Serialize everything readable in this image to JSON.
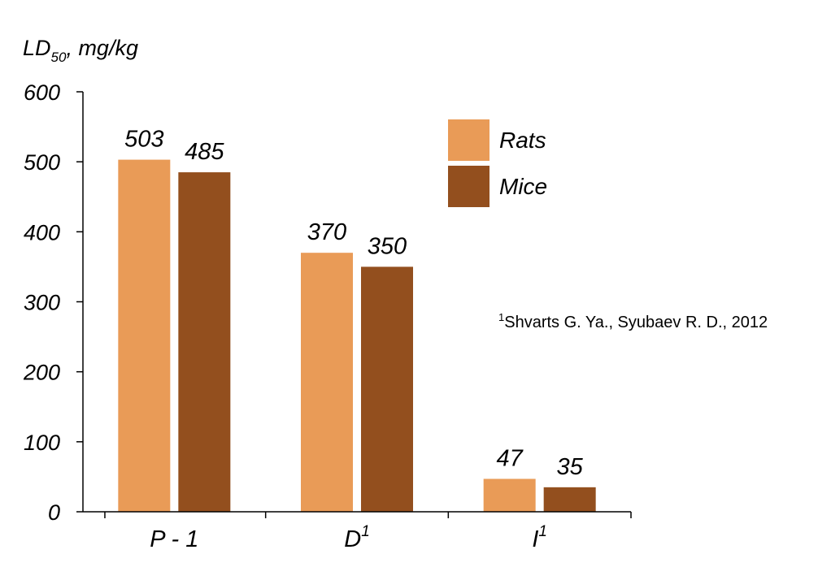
{
  "chart_data": {
    "type": "bar",
    "ylabel": {
      "main": "LD",
      "sub": "50",
      "suffix": ", mg/kg"
    },
    "ylim": [
      0,
      600
    ],
    "yticks": [
      "0",
      "100",
      "200",
      "300",
      "400",
      "500",
      "600"
    ],
    "grid": false,
    "legend_position": "top-right",
    "categories": [
      {
        "main": "P - 1",
        "sup": ""
      },
      {
        "main": "D",
        "sup": "1"
      },
      {
        "main": "I",
        "sup": "1"
      }
    ],
    "series": [
      {
        "name": "Rats",
        "color": "#E99B57",
        "values": [
          503,
          370,
          47
        ]
      },
      {
        "name": "Mice",
        "color": "#934F1E",
        "values": [
          485,
          350,
          35
        ]
      }
    ],
    "annotation": {
      "sup": "1",
      "text": "Shvarts G. Ya., Syubaev R. D., 2012"
    }
  }
}
